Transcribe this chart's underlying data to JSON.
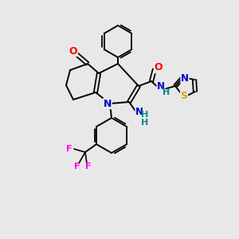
{
  "background_color": "#e8e8e8",
  "atom_colors": {
    "C": "#000000",
    "N": "#0000cd",
    "O": "#ff0000",
    "S": "#ccaa00",
    "F": "#ff00ff",
    "H": "#008b8b"
  }
}
